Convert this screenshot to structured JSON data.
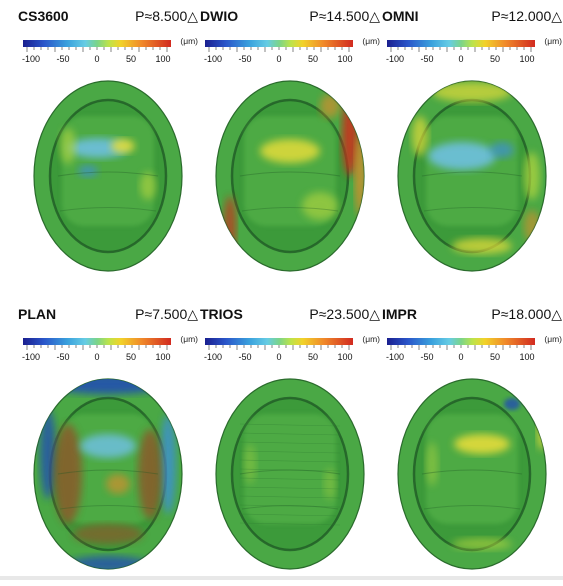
{
  "unit": "(μm)",
  "tick_labels": [
    "-100",
    "-50",
    "0",
    "50",
    "100"
  ],
  "panels": [
    {
      "name": "CS3600",
      "p": "P≈8.500△",
      "variant": "cs3600"
    },
    {
      "name": "DWIO",
      "p": "P≈14.500△",
      "variant": "dwio"
    },
    {
      "name": "OMNI",
      "p": "P≈12.000△",
      "variant": "omni"
    },
    {
      "name": "PLAN",
      "p": "P≈7.500△",
      "variant": "plan"
    },
    {
      "name": "TRIOS",
      "p": "P≈23.500△",
      "variant": "trios"
    },
    {
      "name": "IMPR",
      "p": "P≈18.000△",
      "variant": "impr"
    }
  ]
}
